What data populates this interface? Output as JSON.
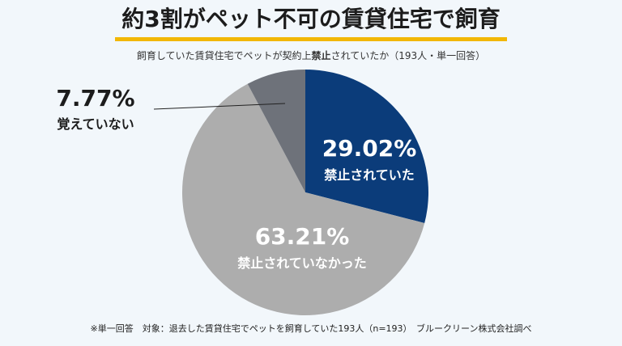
{
  "title": "約3割がペット不可の賃貸住宅で飼育",
  "subtitle": {
    "prefix": "飼育していた賃貸住宅でペットが契約上",
    "bold": "禁止",
    "suffix": "されていたか（193人・単一回答）"
  },
  "footnote": "※単一回答　対象：退去した賃貸住宅でペットを飼育していた193人（n=193）　ブルークリーン株式会社調べ",
  "chart_data": {
    "type": "pie",
    "slices": [
      {
        "label": "禁止されていた",
        "value_text": "29.02%",
        "value": 29.02,
        "color": "#0b3c7a"
      },
      {
        "label": "禁止されていなかった",
        "value_text": "63.21%",
        "value": 63.21,
        "color": "#adadad"
      },
      {
        "label": "覚えていない",
        "value_text": "7.77%",
        "value": 7.77,
        "color": "#6e727a"
      }
    ]
  }
}
